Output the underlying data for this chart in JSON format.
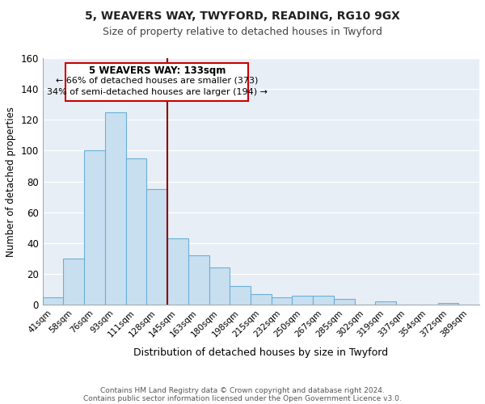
{
  "title1": "5, WEAVERS WAY, TWYFORD, READING, RG10 9GX",
  "title2": "Size of property relative to detached houses in Twyford",
  "xlabel": "Distribution of detached houses by size in Twyford",
  "ylabel": "Number of detached properties",
  "bin_labels": [
    "41sqm",
    "58sqm",
    "76sqm",
    "93sqm",
    "111sqm",
    "128sqm",
    "145sqm",
    "163sqm",
    "180sqm",
    "198sqm",
    "215sqm",
    "232sqm",
    "250sqm",
    "267sqm",
    "285sqm",
    "302sqm",
    "319sqm",
    "337sqm",
    "354sqm",
    "372sqm",
    "389sqm"
  ],
  "bar_values": [
    5,
    30,
    100,
    125,
    95,
    75,
    43,
    32,
    24,
    12,
    7,
    5,
    6,
    6,
    4,
    0,
    2,
    0,
    0,
    1,
    0
  ],
  "bar_color": "#c8dff0",
  "bar_edge_color": "#6ab0d8",
  "vline_x": 5.5,
  "vline_color": "#8b0000",
  "annotation_title": "5 WEAVERS WAY: 133sqm",
  "annotation_line1": "← 66% of detached houses are smaller (373)",
  "annotation_line2": "34% of semi-detached houses are larger (194) →",
  "annotation_box_color": "#ffffff",
  "annotation_box_edge": "#cc0000",
  "ylim": [
    0,
    160
  ],
  "yticks": [
    0,
    20,
    40,
    60,
    80,
    100,
    120,
    140,
    160
  ],
  "footer1": "Contains HM Land Registry data © Crown copyright and database right 2024.",
  "footer2": "Contains public sector information licensed under the Open Government Licence v3.0.",
  "bg_color": "#e8eef5"
}
